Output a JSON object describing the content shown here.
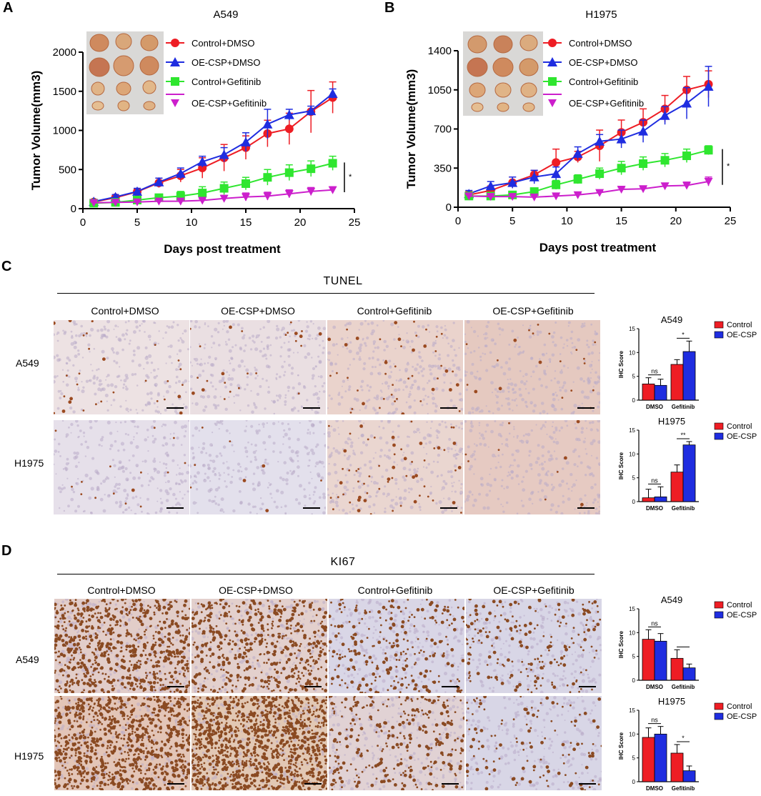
{
  "colors": {
    "control_dmso": "#ee1d24",
    "oe_dmso": "#1f2de0",
    "control_gef": "#2fe62f",
    "oe_gef": "#cc1fcc",
    "bar_control": "#ee1d24",
    "bar_oe": "#1f2de0",
    "tunel_bg": "#ece0dc",
    "ki67_bg": "#d9d4e4",
    "ki67_nuclei": "#8a4a22"
  },
  "panels": {
    "A": {
      "label": "A"
    },
    "B": {
      "label": "B"
    },
    "C": {
      "label": "C",
      "stain": "TUNEL"
    },
    "D": {
      "label": "D",
      "stain": "KI67"
    }
  },
  "groups": [
    "Control+DMSO",
    "OE-CSP+DMSO",
    "Control+Gefitinib",
    "OE-CSP+Gefitinib"
  ],
  "rows": [
    "A549",
    "H1975"
  ],
  "chart_data": [
    {
      "id": "A",
      "type": "line",
      "title": "A549",
      "xlabel": "Days post treatment",
      "ylabel": "Tumor Volume(mm3)",
      "xlim": [
        0,
        25
      ],
      "ylim": [
        0,
        2000
      ],
      "xticks": [
        0,
        5,
        10,
        15,
        20,
        25
      ],
      "yticks": [
        0,
        500,
        1000,
        1500,
        2000
      ],
      "x": [
        1,
        3,
        5,
        7,
        9,
        11,
        13,
        15,
        17,
        19,
        21,
        23
      ],
      "series": [
        {
          "name": "Control+DMSO",
          "marker": "circle",
          "color": "#ee1d24",
          "values": [
            85,
            140,
            215,
            330,
            420,
            520,
            650,
            780,
            960,
            1020,
            1240,
            1420
          ],
          "errors": [
            20,
            30,
            40,
            60,
            80,
            130,
            170,
            150,
            170,
            200,
            270,
            200
          ]
        },
        {
          "name": "OE-CSP+DMSO",
          "marker": "triangle",
          "color": "#1f2de0",
          "values": [
            90,
            150,
            220,
            340,
            450,
            600,
            690,
            850,
            1080,
            1200,
            1250,
            1470
          ],
          "errors": [
            20,
            30,
            40,
            50,
            70,
            70,
            90,
            120,
            190,
            70,
            60,
            60
          ]
        },
        {
          "name": "Control+Gefitinib",
          "marker": "square",
          "color": "#2fe62f",
          "values": [
            70,
            80,
            110,
            140,
            160,
            200,
            260,
            320,
            400,
            460,
            510,
            580
          ],
          "errors": [
            10,
            15,
            20,
            40,
            60,
            80,
            80,
            80,
            100,
            100,
            100,
            90
          ]
        },
        {
          "name": "OE-CSP+Gefitinib",
          "marker": "inv-triangle",
          "color": "#cc1fcc",
          "values": [
            75,
            80,
            85,
            95,
            95,
            105,
            130,
            150,
            160,
            190,
            220,
            240
          ],
          "errors": [
            10,
            10,
            10,
            15,
            20,
            20,
            40,
            50,
            50,
            50,
            50,
            40
          ]
        }
      ],
      "annotation": "*"
    },
    {
      "id": "B",
      "type": "line",
      "title": "H1975",
      "xlabel": "Days post treatment",
      "ylabel": "Tumor Volume(mm3)",
      "xlim": [
        0,
        25
      ],
      "ylim": [
        0,
        1400
      ],
      "xticks": [
        0,
        5,
        10,
        15,
        20,
        25
      ],
      "yticks": [
        0,
        350,
        700,
        1050,
        1400
      ],
      "x": [
        1,
        3,
        5,
        7,
        9,
        11,
        13,
        15,
        17,
        19,
        21,
        23
      ],
      "series": [
        {
          "name": "Control+DMSO",
          "marker": "circle",
          "color": "#ee1d24",
          "values": [
            110,
            150,
            220,
            290,
            400,
            450,
            550,
            670,
            760,
            880,
            1050,
            1100
          ],
          "errors": [
            30,
            40,
            50,
            40,
            120,
            50,
            140,
            110,
            120,
            120,
            120,
            120
          ]
        },
        {
          "name": "OE-CSP+DMSO",
          "marker": "triangle",
          "color": "#1f2de0",
          "values": [
            120,
            190,
            220,
            270,
            300,
            480,
            590,
            610,
            680,
            820,
            930,
            1080
          ],
          "errors": [
            30,
            40,
            50,
            60,
            60,
            60,
            60,
            80,
            100,
            80,
            140,
            180
          ]
        },
        {
          "name": "Control+Gefitinib",
          "marker": "square",
          "color": "#2fe62f",
          "values": [
            100,
            100,
            110,
            140,
            200,
            250,
            300,
            350,
            390,
            420,
            460,
            510
          ],
          "errors": [
            20,
            20,
            20,
            30,
            40,
            40,
            50,
            60,
            60,
            60,
            60,
            40
          ]
        },
        {
          "name": "OE-CSP+Gefitinib",
          "marker": "inv-triangle",
          "color": "#cc1fcc",
          "values": [
            100,
            95,
            95,
            90,
            100,
            110,
            130,
            160,
            165,
            190,
            195,
            230
          ],
          "errors": [
            15,
            15,
            15,
            15,
            15,
            15,
            15,
            15,
            15,
            20,
            30,
            40
          ]
        }
      ],
      "annotation": "*"
    },
    {
      "id": "C-A549",
      "type": "bar",
      "title": "A549",
      "ylabel": "IHC Score",
      "ylim": [
        0,
        15
      ],
      "yticks": [
        0,
        5,
        10,
        15
      ],
      "categories": [
        "DMSO",
        "Gefitinib"
      ],
      "series": [
        {
          "name": "Control",
          "values": [
            3.4,
            7.5
          ],
          "errors": [
            1.3,
            1.0
          ]
        },
        {
          "name": "OE-CSP",
          "values": [
            3.1,
            10.2
          ],
          "errors": [
            1.3,
            2.2
          ]
        }
      ],
      "annotations": [
        "ns",
        "*"
      ]
    },
    {
      "id": "C-H1975",
      "type": "bar",
      "title": "H1975",
      "ylabel": "IHC Score",
      "ylim": [
        0,
        15
      ],
      "yticks": [
        0,
        5,
        10,
        15
      ],
      "categories": [
        "DMSO",
        "Gefitinib"
      ],
      "series": [
        {
          "name": "Control",
          "values": [
            0.8,
            6.2
          ],
          "errors": [
            1.8,
            1.5
          ]
        },
        {
          "name": "OE-CSP",
          "values": [
            1.0,
            11.9
          ],
          "errors": [
            2.1,
            0.7
          ]
        }
      ],
      "annotations": [
        "ns",
        "**"
      ]
    },
    {
      "id": "D-A549",
      "type": "bar",
      "title": "A549",
      "ylabel": "IHC Score",
      "ylim": [
        0,
        15
      ],
      "yticks": [
        0,
        5,
        10,
        15
      ],
      "categories": [
        "DMSO",
        "Gefitinib"
      ],
      "series": [
        {
          "name": "Control",
          "values": [
            8.6,
            4.6
          ],
          "errors": [
            2.0,
            1.8
          ]
        },
        {
          "name": "OE-CSP",
          "values": [
            8.2,
            2.6
          ],
          "errors": [
            1.6,
            0.8
          ]
        }
      ],
      "annotations": [
        "ns",
        ""
      ]
    },
    {
      "id": "D-H1975",
      "type": "bar",
      "title": "H1975",
      "ylabel": "IHC Score",
      "ylim": [
        0,
        15
      ],
      "yticks": [
        0,
        5,
        10,
        15
      ],
      "categories": [
        "DMSO",
        "Gefitinib"
      ],
      "series": [
        {
          "name": "Control",
          "values": [
            9.3,
            6.0
          ],
          "errors": [
            2.0,
            1.8
          ]
        },
        {
          "name": "OE-CSP",
          "values": [
            10.0,
            2.3
          ],
          "errors": [
            1.6,
            1.0
          ]
        }
      ],
      "annotations": [
        "ns",
        "*"
      ]
    }
  ]
}
